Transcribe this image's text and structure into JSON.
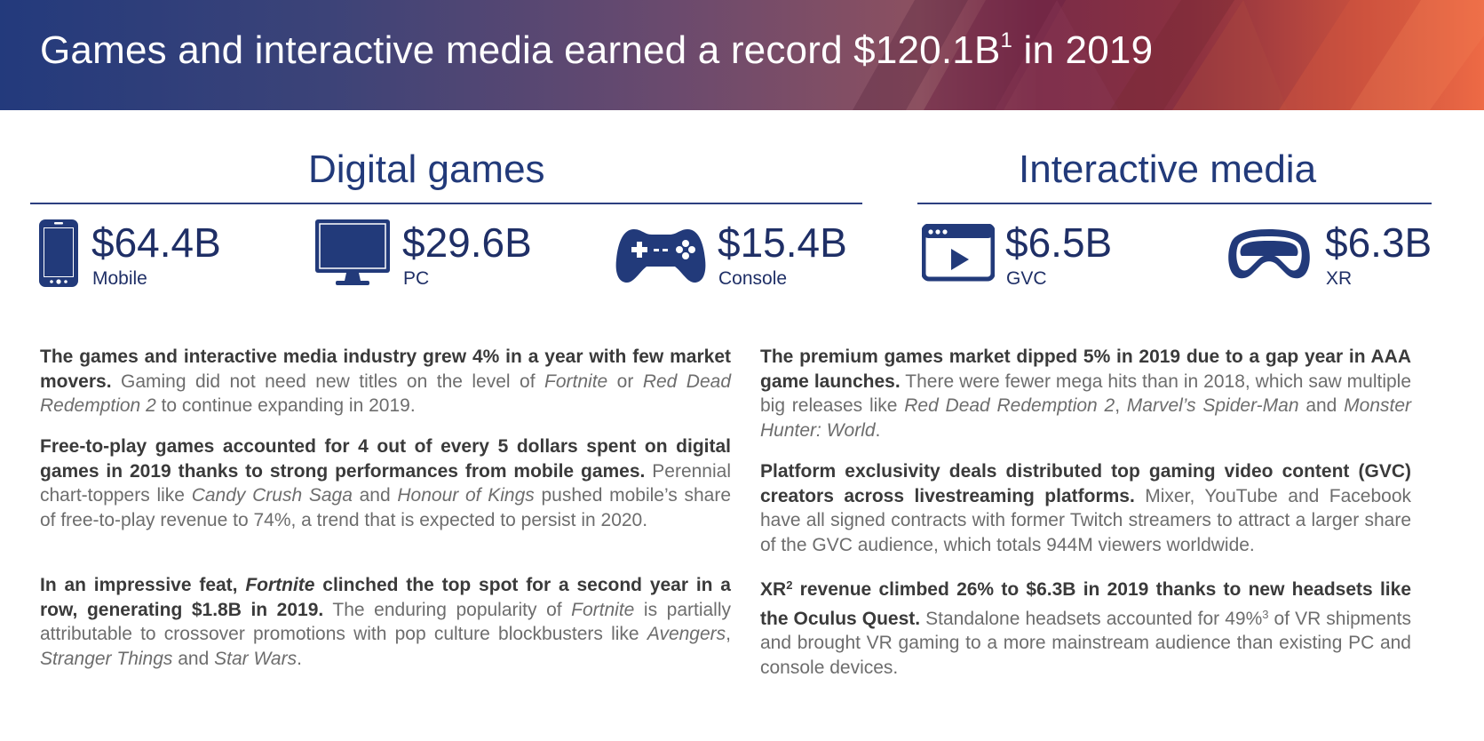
{
  "banner": {
    "title_main": "Games and interactive media earned a record $120.1B",
    "title_sup": "1",
    "title_end": " in 2019"
  },
  "sections": {
    "digital": "Digital games",
    "interactive": "Interactive media"
  },
  "stats": [
    {
      "icon": "mobile-phone-icon",
      "value": "$64.4B",
      "label": "Mobile"
    },
    {
      "icon": "pc-monitor-icon",
      "value": "$29.6B",
      "label": "PC"
    },
    {
      "icon": "gamepad-icon",
      "value": "$15.4B",
      "label": "Console"
    },
    {
      "icon": "video-player-icon",
      "value": "$6.5B",
      "label": "GVC"
    },
    {
      "icon": "vr-headset-icon",
      "value": "$6.3B",
      "label": "XR"
    }
  ],
  "left": {
    "p1": {
      "bold": "The games and interactive media industry grew 4% in a year with few market movers.",
      "t1": " Gaming did not need new titles on the level of ",
      "i1": "Fortnite",
      "t2": " or ",
      "i2": "Red Dead Redemption 2",
      "t3": " to continue expanding in 2019."
    },
    "p2": {
      "bold": "Free-to-play games accounted for 4 out of every 5 dollars spent on digital games in 2019 thanks to strong performances from mobile games.",
      "t1": " Perennial chart-toppers like ",
      "i1": "Candy Crush Saga",
      "t2": " and ",
      "i2": "Honour of Kings",
      "t3": " pushed mobile’s share of free-to-play revenue to 74%, a trend that is expected to persist in 2020."
    },
    "p3": {
      "b1": "In an impressive feat, ",
      "bi": "Fortnite",
      "b2": " clinched the top spot for a second year in a row, generating $1.8B in 2019.",
      "t1": " The enduring popularity of ",
      "i1": "Fortnite",
      "t2": " is partially attributable to crossover promotions with pop culture blockbusters like ",
      "i2": "Avengers",
      "t3": ", ",
      "i3": "Stranger Things",
      "t4": " and ",
      "i4": "Star Wars",
      "t5": "."
    }
  },
  "right": {
    "p1": {
      "bold": "The premium games market dipped 5% in 2019 due to a gap year in AAA game launches.",
      "t1": " There were fewer mega hits than in 2018, which saw multiple big releases like ",
      "i1": "Red Dead Redemption 2",
      "t2": ", ",
      "i2": "Marvel’s Spider-Man",
      "t3": " and ",
      "i3": "Monster Hunter: World",
      "t4": "."
    },
    "p2": {
      "bold": "Platform exclusivity deals distributed top gaming video content (GVC) creators across livestreaming platforms.",
      "t1": " Mixer, YouTube and Facebook have all signed contracts with former Twitch streamers to attract a larger share of the GVC audience, which totals 944M viewers worldwide."
    },
    "p3": {
      "b1": "XR",
      "bsup": "2",
      "b2": " revenue climbed 26% to $6.3B in 2019 thanks to new headsets like the Oculus Quest.",
      "t1": " Standalone headsets accounted for 49%",
      "sup": "3",
      "t2": " of VR shipments and brought VR gaming to a more mainstream audience than existing PC and console devices."
    }
  },
  "colors": {
    "navy": "#1f2f66",
    "banner_start": "#233a7c",
    "banner_end": "#ee6a45",
    "body_text": "#6d6d6d",
    "bold_text": "#3a3a3a"
  }
}
